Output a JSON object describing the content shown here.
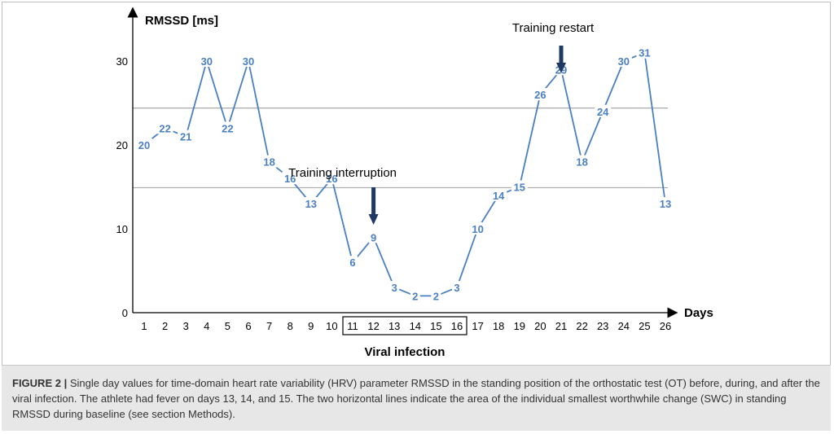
{
  "chart_data": {
    "type": "line",
    "ylabel": "RMSSD [ms]",
    "xlabel": "Days",
    "ylim": [
      0,
      35
    ],
    "yticks": [
      0,
      10,
      20,
      30
    ],
    "x": [
      1,
      2,
      3,
      4,
      5,
      6,
      7,
      8,
      9,
      10,
      11,
      12,
      13,
      14,
      15,
      16,
      17,
      18,
      19,
      20,
      21,
      22,
      23,
      24,
      25,
      26
    ],
    "values": [
      20,
      22,
      21,
      30,
      22,
      30,
      18,
      16,
      13,
      16,
      6,
      9,
      3,
      2,
      2,
      3,
      10,
      14,
      15,
      26,
      29,
      18,
      24,
      30,
      31,
      13
    ],
    "reference_lines": [
      24.4,
      14.9
    ],
    "highlight_days": [
      11,
      12,
      13,
      14,
      15,
      16
    ],
    "highlight_label": "Viral infection",
    "annotations": [
      {
        "text": "Training interruption",
        "day": 12
      },
      {
        "text": "Training restart",
        "day": 21
      }
    ],
    "line_color": "#4a7fc1",
    "arrow_color": "#1f3864"
  },
  "caption": {
    "label": "FIGURE 2 |",
    "text": " Single day values for time-domain heart rate variability (HRV) parameter RMSSD in the standing position of the orthostatic test (OT) before, during, and after the viral infection. The athlete had fever on days 13, 14, and 15. The two horizontal lines indicate the area of the individual smallest worthwhile change (SWC) in standing RMSSD during baseline (see section Methods)."
  }
}
